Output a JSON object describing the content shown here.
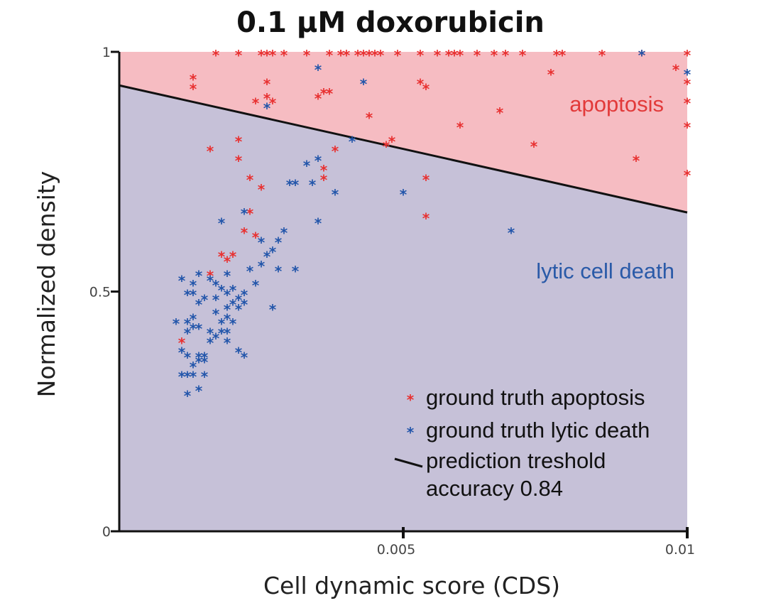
{
  "chart_data": {
    "type": "scatter",
    "title": "0.1 μM doxorubicin",
    "xlabel": "Cell dynamic score (CDS)",
    "ylabel": "Normalized density",
    "xlim": [
      0,
      0.01
    ],
    "ylim": [
      0,
      1
    ],
    "x_ticks": [
      {
        "value": 0.005,
        "label": "0.005"
      },
      {
        "value": 0.01,
        "label": "0.01"
      }
    ],
    "y_ticks": [
      {
        "value": 0,
        "label": "0"
      },
      {
        "value": 0.5,
        "label": "0.5"
      },
      {
        "value": 1,
        "label": "1"
      }
    ],
    "regions": [
      {
        "label": "apoptosis",
        "color": "#f6bcc2",
        "text_color": "#e23a3a",
        "side": "above"
      },
      {
        "label": "lytic cell death",
        "color": "#c6c1d8",
        "text_color": "#2a5aa8",
        "side": "below"
      }
    ],
    "threshold_line": {
      "x": [
        0,
        0.01
      ],
      "y": [
        0.93,
        0.665
      ],
      "color": "#111111"
    },
    "legend": {
      "placement": "bottom-right",
      "entries": [
        {
          "label": "ground truth apoptosis",
          "marker": "*",
          "color": "#e83030"
        },
        {
          "label": "ground truth lytic death",
          "marker": "*",
          "color": "#2255aa"
        },
        {
          "label": "prediction treshold",
          "marker": "line",
          "color": "#111111"
        }
      ],
      "note": "accuracy 0.84"
    },
    "grid": false,
    "series": [
      {
        "name": "ground truth apoptosis",
        "color": "#e83030",
        "points": [
          [
            0.0017,
            1
          ],
          [
            0.0021,
            1
          ],
          [
            0.0025,
            1
          ],
          [
            0.0026,
            1
          ],
          [
            0.0027,
            1
          ],
          [
            0.0029,
            1
          ],
          [
            0.0033,
            1
          ],
          [
            0.0037,
            1
          ],
          [
            0.0039,
            1
          ],
          [
            0.004,
            1
          ],
          [
            0.0042,
            1
          ],
          [
            0.0043,
            1
          ],
          [
            0.0044,
            1
          ],
          [
            0.0045,
            1
          ],
          [
            0.0046,
            1
          ],
          [
            0.0049,
            1
          ],
          [
            0.0053,
            1
          ],
          [
            0.0056,
            1
          ],
          [
            0.0058,
            1
          ],
          [
            0.0059,
            1
          ],
          [
            0.006,
            1
          ],
          [
            0.0063,
            1
          ],
          [
            0.0066,
            1
          ],
          [
            0.0068,
            1
          ],
          [
            0.0071,
            1
          ],
          [
            0.0077,
            1
          ],
          [
            0.0078,
            1
          ],
          [
            0.0085,
            1
          ],
          [
            0.0092,
            1
          ],
          [
            0.01,
            1
          ],
          [
            0.0013,
            0.95
          ],
          [
            0.0013,
            0.93
          ],
          [
            0.0026,
            0.94
          ],
          [
            0.0026,
            0.91
          ],
          [
            0.0024,
            0.9
          ],
          [
            0.0027,
            0.9
          ],
          [
            0.0035,
            0.91
          ],
          [
            0.0036,
            0.92
          ],
          [
            0.0037,
            0.92
          ],
          [
            0.0053,
            0.94
          ],
          [
            0.0054,
            0.93
          ],
          [
            0.0076,
            0.96
          ],
          [
            0.0098,
            0.97
          ],
          [
            0.01,
            0.94
          ],
          [
            0.01,
            0.9
          ],
          [
            0.01,
            0.85
          ],
          [
            0.01,
            0.75
          ],
          [
            0.0067,
            0.88
          ],
          [
            0.0044,
            0.87
          ],
          [
            0.006,
            0.85
          ],
          [
            0.0047,
            0.81
          ],
          [
            0.0048,
            0.82
          ],
          [
            0.0073,
            0.81
          ],
          [
            0.0091,
            0.78
          ],
          [
            0.0016,
            0.8
          ],
          [
            0.0021,
            0.82
          ],
          [
            0.0021,
            0.78
          ],
          [
            0.0038,
            0.8
          ],
          [
            0.0036,
            0.76
          ],
          [
            0.0023,
            0.74
          ],
          [
            0.0036,
            0.74
          ],
          [
            0.0025,
            0.72
          ],
          [
            0.0054,
            0.74
          ],
          [
            0.0054,
            0.66
          ],
          [
            0.0023,
            0.67
          ],
          [
            0.0022,
            0.63
          ],
          [
            0.0024,
            0.62
          ],
          [
            0.0018,
            0.58
          ],
          [
            0.0019,
            0.57
          ],
          [
            0.002,
            0.58
          ],
          [
            0.0016,
            0.54
          ],
          [
            0.0011,
            0.4
          ]
        ]
      },
      {
        "name": "ground truth lytic death",
        "color": "#2255aa",
        "points": [
          [
            0.0092,
            1
          ],
          [
            0.01,
            0.96
          ],
          [
            0.0035,
            0.97
          ],
          [
            0.0043,
            0.94
          ],
          [
            0.0026,
            0.89
          ],
          [
            0.0041,
            0.82
          ],
          [
            0.0035,
            0.78
          ],
          [
            0.0033,
            0.77
          ],
          [
            0.003,
            0.73
          ],
          [
            0.0031,
            0.73
          ],
          [
            0.0034,
            0.73
          ],
          [
            0.0038,
            0.71
          ],
          [
            0.005,
            0.71
          ],
          [
            0.0035,
            0.65
          ],
          [
            0.0069,
            0.63
          ],
          [
            0.0018,
            0.65
          ],
          [
            0.0022,
            0.67
          ],
          [
            0.0025,
            0.61
          ],
          [
            0.0028,
            0.61
          ],
          [
            0.0029,
            0.63
          ],
          [
            0.0026,
            0.58
          ],
          [
            0.0027,
            0.59
          ],
          [
            0.0025,
            0.56
          ],
          [
            0.0028,
            0.55
          ],
          [
            0.0031,
            0.55
          ],
          [
            0.0023,
            0.55
          ],
          [
            0.0019,
            0.54
          ],
          [
            0.0014,
            0.54
          ],
          [
            0.0011,
            0.53
          ],
          [
            0.0013,
            0.52
          ],
          [
            0.0016,
            0.53
          ],
          [
            0.0017,
            0.52
          ],
          [
            0.0012,
            0.5
          ],
          [
            0.0013,
            0.5
          ],
          [
            0.0015,
            0.49
          ],
          [
            0.0017,
            0.49
          ],
          [
            0.0019,
            0.5
          ],
          [
            0.0018,
            0.51
          ],
          [
            0.002,
            0.51
          ],
          [
            0.0024,
            0.52
          ],
          [
            0.0022,
            0.5
          ],
          [
            0.0021,
            0.49
          ],
          [
            0.0019,
            0.47
          ],
          [
            0.0014,
            0.48
          ],
          [
            0.002,
            0.48
          ],
          [
            0.0022,
            0.48
          ],
          [
            0.0021,
            0.47
          ],
          [
            0.0017,
            0.46
          ],
          [
            0.0019,
            0.45
          ],
          [
            0.0018,
            0.44
          ],
          [
            0.002,
            0.44
          ],
          [
            0.0013,
            0.45
          ],
          [
            0.0012,
            0.44
          ],
          [
            0.001,
            0.44
          ],
          [
            0.0013,
            0.43
          ],
          [
            0.0016,
            0.42
          ],
          [
            0.0018,
            0.42
          ],
          [
            0.0017,
            0.41
          ],
          [
            0.0019,
            0.42
          ],
          [
            0.0019,
            0.4
          ],
          [
            0.0016,
            0.4
          ],
          [
            0.0027,
            0.47
          ],
          [
            0.0012,
            0.42
          ],
          [
            0.0014,
            0.43
          ],
          [
            0.0011,
            0.38
          ],
          [
            0.0012,
            0.37
          ],
          [
            0.0014,
            0.37
          ],
          [
            0.0015,
            0.37
          ],
          [
            0.0014,
            0.36
          ],
          [
            0.0013,
            0.35
          ],
          [
            0.0015,
            0.36
          ],
          [
            0.0021,
            0.38
          ],
          [
            0.0022,
            0.37
          ],
          [
            0.0011,
            0.33
          ],
          [
            0.0012,
            0.33
          ],
          [
            0.0013,
            0.33
          ],
          [
            0.0015,
            0.33
          ],
          [
            0.0014,
            0.3
          ],
          [
            0.0012,
            0.29
          ]
        ]
      }
    ]
  }
}
